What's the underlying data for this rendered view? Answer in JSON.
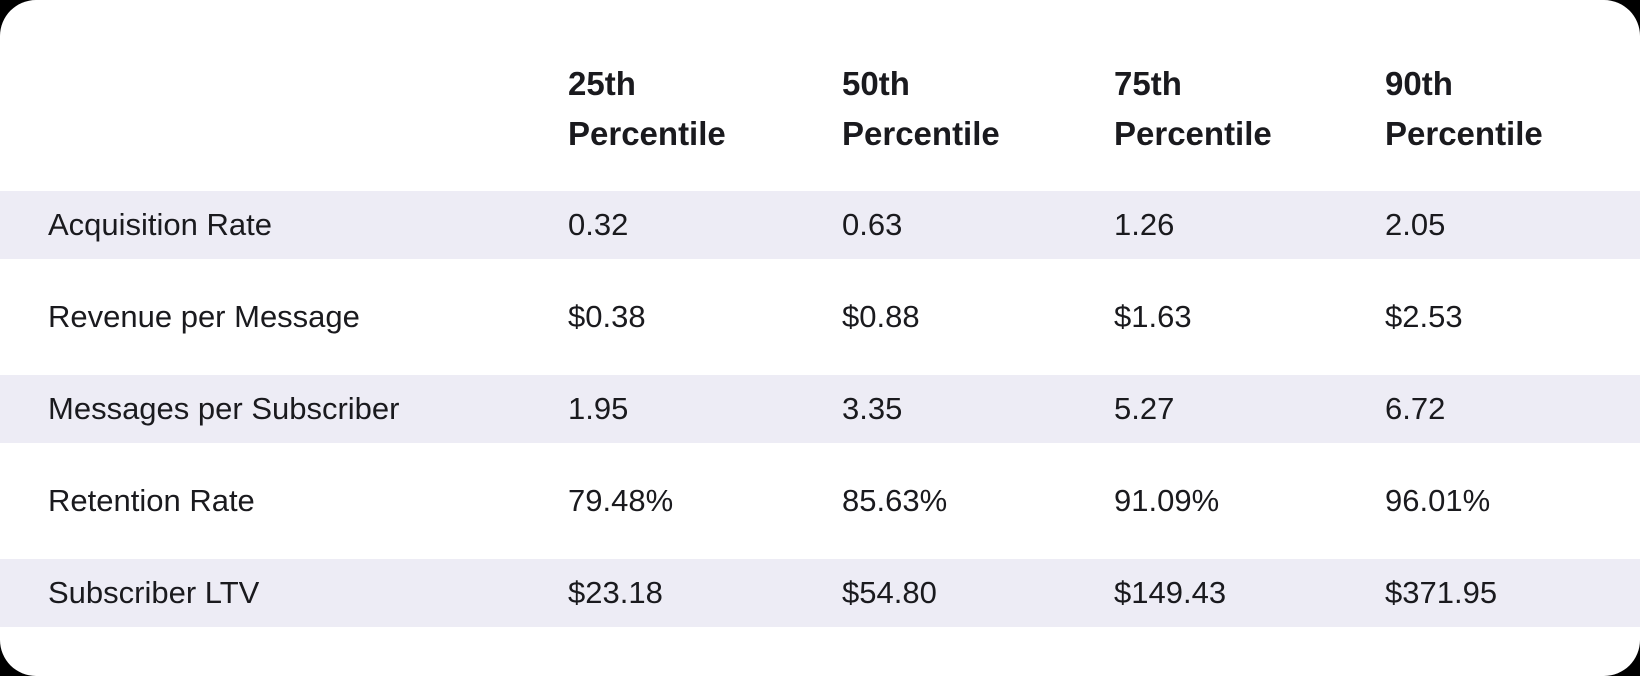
{
  "colors": {
    "page_background": "#000000",
    "card_background": "#ffffff",
    "row_stripe": "#edecf5",
    "text": "#1a1a1e"
  },
  "table": {
    "metric_column_header": "",
    "columns": [
      "25th Percentile",
      "50th Percentile",
      "75th Percentile",
      "90th Percentile"
    ],
    "rows": [
      {
        "label": "Acquisition Rate",
        "values": [
          "0.32",
          "0.63",
          "1.26",
          "2.05"
        ]
      },
      {
        "label": "Revenue per Message",
        "values": [
          "$0.38",
          "$0.88",
          "$1.63",
          "$2.53"
        ]
      },
      {
        "label": "Messages per Subscriber",
        "values": [
          "1.95",
          "3.35",
          "5.27",
          "6.72"
        ]
      },
      {
        "label": "Retention Rate",
        "values": [
          "79.48%",
          "85.63%",
          "91.09%",
          "96.01%"
        ]
      },
      {
        "label": "Subscriber LTV",
        "values": [
          "$23.18",
          "$54.80",
          "$149.43",
          "$371.95"
        ]
      }
    ]
  },
  "chart_data": {
    "type": "table",
    "title": "",
    "columns": [
      "",
      "25th Percentile",
      "50th Percentile",
      "75th Percentile",
      "90th Percentile"
    ],
    "rows": [
      [
        "Acquisition Rate",
        "0.32",
        "0.63",
        "1.26",
        "2.05"
      ],
      [
        "Revenue per Message",
        "$0.38",
        "$0.88",
        "$1.63",
        "$2.53"
      ],
      [
        "Messages per Subscriber",
        "1.95",
        "3.35",
        "5.27",
        "6.72"
      ],
      [
        "Retention Rate",
        "79.48%",
        "85.63%",
        "91.09%",
        "96.01%"
      ],
      [
        "Subscriber LTV",
        "$23.18",
        "$54.80",
        "$149.43",
        "$371.95"
      ]
    ],
    "layout": {
      "striped_rows": "odd",
      "header_position": "top",
      "first_column_role": "metric-name"
    }
  }
}
